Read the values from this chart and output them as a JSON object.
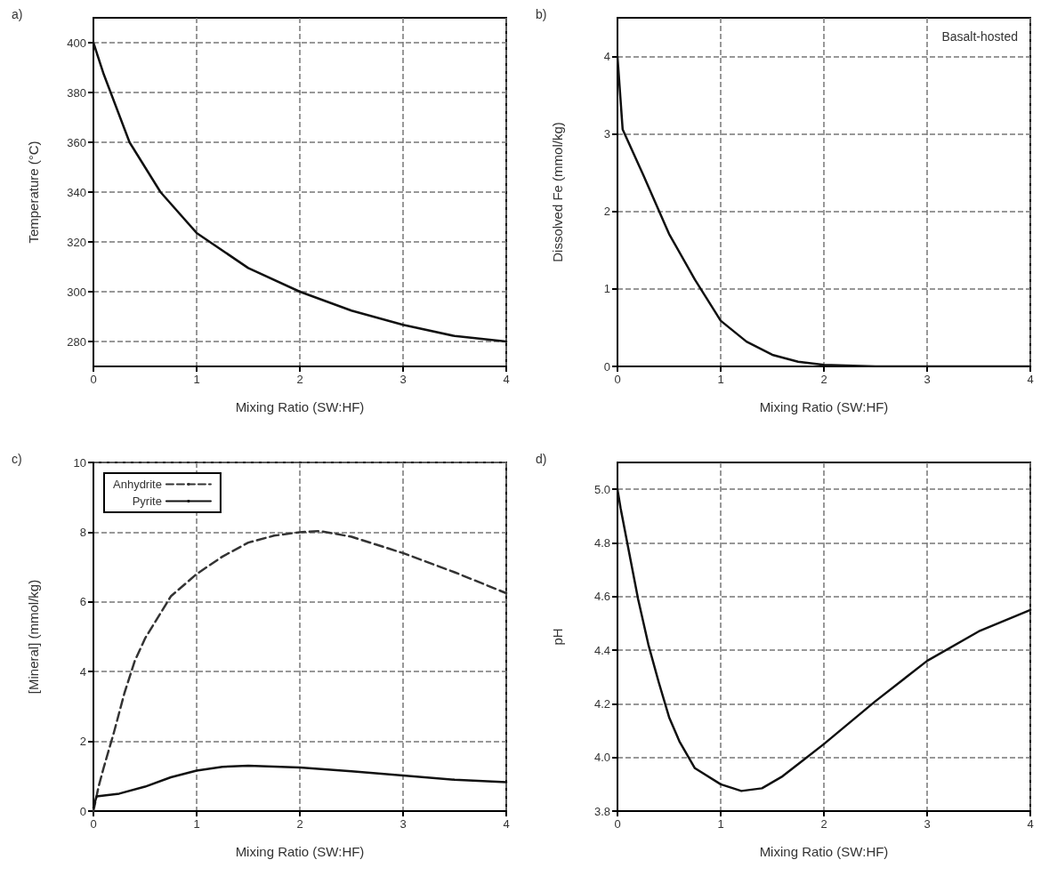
{
  "chart_data": [
    {
      "type": "line",
      "title": "a)",
      "xlabel": "Mixing Ratio (SW:HF)",
      "ylabel": "Temperature (°C)",
      "xlim": [
        0,
        4
      ],
      "xticks": [
        0,
        1,
        2,
        3,
        4
      ],
      "ylim": [
        270,
        410
      ],
      "yticks": [
        280,
        300,
        320,
        340,
        360,
        380,
        400
      ],
      "grid": true,
      "marker": "none",
      "line_style": "solid",
      "series": [
        {
          "color": "#111111",
          "x": [
            0,
            0.1,
            0.35,
            0.65,
            1,
            1.5,
            2,
            2.5,
            3,
            3.5,
            4
          ],
          "values": [
            400,
            387.3,
            360,
            340,
            323.6,
            309.5,
            300,
            292.4,
            286.7,
            282.2,
            280
          ]
        }
      ]
    },
    {
      "type": "line",
      "title": "b)",
      "xlabel": "Mixing Ratio (SW:HF)",
      "ylabel": "Dissolved Fe (mmol/kg)",
      "annotations": [
        "Basalt-hosted"
      ],
      "xlim": [
        0,
        4
      ],
      "xticks": [
        0,
        1,
        2,
        3,
        4
      ],
      "ylim": [
        0,
        4.5
      ],
      "yticks": [
        0,
        1,
        2,
        3,
        4
      ],
      "grid": true,
      "marker": "none",
      "line_style": "solid",
      "series": [
        {
          "color": "#111111",
          "x": [
            0,
            0.05,
            0.25,
            0.5,
            0.75,
            1,
            1.25,
            1.5,
            1.75,
            2,
            2.5,
            3,
            3.5,
            4
          ],
          "values": [
            4.0,
            3.06,
            2.47,
            1.71,
            1.12,
            0.59,
            0.32,
            0.15,
            0.06,
            0.02,
            0,
            0,
            0,
            0
          ]
        }
      ]
    },
    {
      "type": "line",
      "title": "c)",
      "xlabel": "Mixing Ratio (SW:HF)",
      "ylabel": "[Mineral] (mmol/kg)",
      "xlim": [
        0,
        4
      ],
      "xticks": [
        0,
        1,
        2,
        3,
        4
      ],
      "ylim": [
        0,
        10
      ],
      "yticks": [
        0,
        2,
        4,
        6,
        8,
        10
      ],
      "grid": true,
      "marker": "none",
      "legend": "top left",
      "series": [
        {
          "name": "Anhydrite",
          "color": "#333333",
          "line_style": "dashed",
          "x": [
            0,
            0.05,
            0.1,
            0.2,
            0.3,
            0.4,
            0.5,
            0.75,
            1,
            1.25,
            1.5,
            1.75,
            2,
            2.2,
            2.5,
            3,
            3.5,
            4
          ],
          "values": [
            0,
            0.7,
            1.25,
            2.27,
            3.38,
            4.3,
            4.95,
            6.16,
            6.8,
            7.3,
            7.7,
            7.9,
            8.0,
            8.03,
            7.87,
            7.4,
            6.85,
            6.25
          ]
        },
        {
          "name": "Pyrite",
          "color": "#111111",
          "line_style": "solid",
          "x": [
            0,
            0.03,
            0.25,
            0.5,
            0.75,
            1,
            1.25,
            1.5,
            2,
            2.5,
            3,
            3.5,
            4
          ],
          "values": [
            0.1,
            0.42,
            0.5,
            0.7,
            0.97,
            1.16,
            1.27,
            1.3,
            1.25,
            1.14,
            1.02,
            0.9,
            0.83
          ]
        }
      ]
    },
    {
      "type": "line",
      "title": "d)",
      "xlabel": "Mixing Ratio (SW:HF)",
      "ylabel": "pH",
      "xlim": [
        0,
        4
      ],
      "xticks": [
        0,
        1,
        2,
        3,
        4
      ],
      "ylim": [
        3.8,
        5.1
      ],
      "yticks": [
        3.8,
        {
          "value": 4,
          "label": "4.0"
        },
        4.2,
        4.4,
        4.6,
        4.8,
        {
          "value": 5,
          "label": "5.0"
        }
      ],
      "grid": true,
      "marker": "none",
      "line_style": "solid",
      "series": [
        {
          "color": "#111111",
          "x": [
            0,
            0.03,
            0.1,
            0.2,
            0.3,
            0.4,
            0.5,
            0.6,
            0.75,
            1,
            1.2,
            1.4,
            1.6,
            1.8,
            2,
            2.5,
            3,
            3.5,
            4
          ],
          "values": [
            5.0,
            4.93,
            4.79,
            4.59,
            4.42,
            4.28,
            4.15,
            4.06,
            3.96,
            3.9,
            3.875,
            3.885,
            3.93,
            3.99,
            4.05,
            4.21,
            4.36,
            4.47,
            4.55
          ]
        }
      ]
    }
  ]
}
